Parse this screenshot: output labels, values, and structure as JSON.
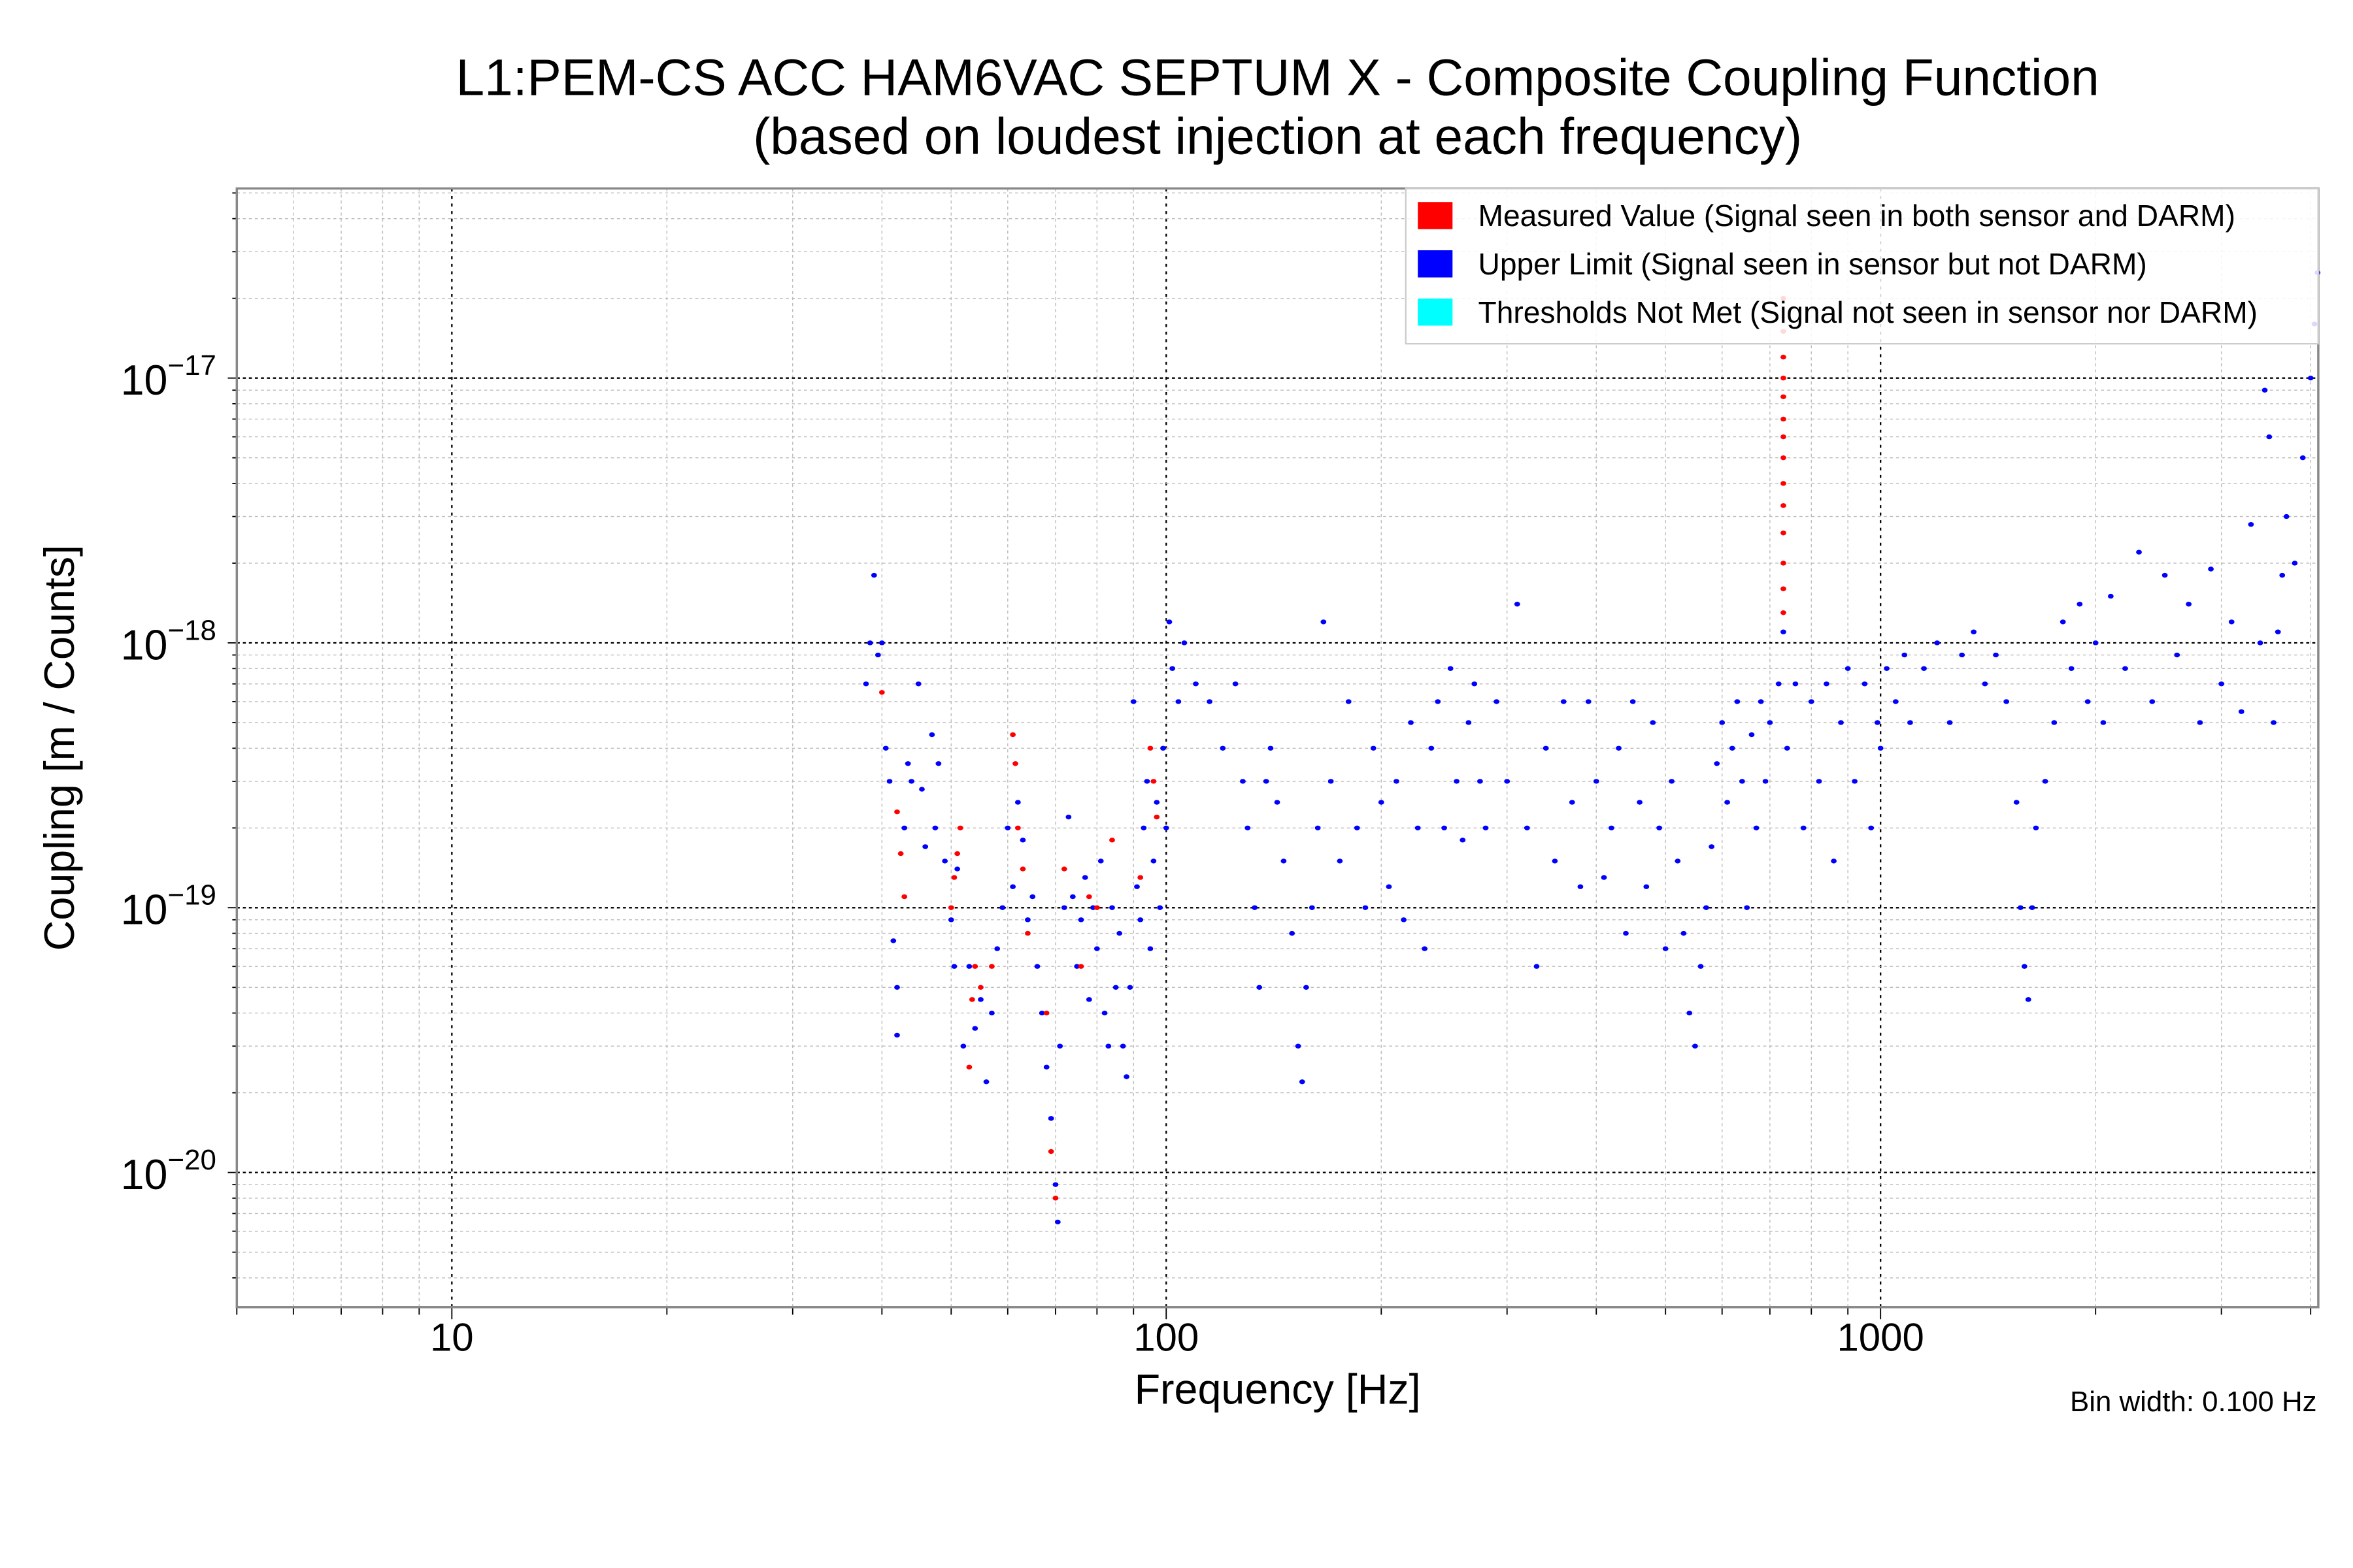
{
  "chart_data": {
    "type": "scatter",
    "title": "L1:PEM-CS ACC HAM6VAC SEPTUM X - Composite Coupling Function",
    "subtitle": "(based on loudest injection at each frequency)",
    "xlabel": "Frequency [Hz]",
    "ylabel": "Coupling [m / Counts]",
    "annotation": "Bin width: 0.100 Hz",
    "xscale": "log",
    "yscale": "log",
    "xlim": [
      5,
      4100
    ],
    "ylim": [
      3.1e-21,
      5.2e-17
    ],
    "x_ticks": [
      {
        "value": 10,
        "label": "10"
      },
      {
        "value": 100,
        "label": "100"
      },
      {
        "value": 1000,
        "label": "1000"
      }
    ],
    "y_ticks": [
      {
        "value": 1e-17,
        "base": "10",
        "exp": "−17"
      },
      {
        "value": 1e-18,
        "base": "10",
        "exp": "−18"
      },
      {
        "value": 1e-19,
        "base": "10",
        "exp": "−19"
      },
      {
        "value": 1e-20,
        "base": "10",
        "exp": "−20"
      }
    ],
    "grid": true,
    "legend_position": "top-right",
    "series": [
      {
        "name": "Measured Value (Signal seen in both sensor and DARM)",
        "color": "#ff0000",
        "points": [
          [
            40,
            6.5e-19
          ],
          [
            42,
            2.3e-19
          ],
          [
            42.5,
            1.6e-19
          ],
          [
            43,
            1.1e-19
          ],
          [
            50,
            1e-19
          ],
          [
            50.5,
            1.3e-19
          ],
          [
            51,
            1.6e-19
          ],
          [
            51.5,
            2e-19
          ],
          [
            53,
            2.5e-20
          ],
          [
            53.5,
            4.5e-20
          ],
          [
            54,
            6e-20
          ],
          [
            55,
            5e-20
          ],
          [
            57,
            6e-20
          ],
          [
            61,
            4.5e-19
          ],
          [
            61.5,
            3.5e-19
          ],
          [
            62,
            2e-19
          ],
          [
            63,
            1.4e-19
          ],
          [
            64,
            8e-20
          ],
          [
            68,
            4e-20
          ],
          [
            69,
            1.2e-20
          ],
          [
            70,
            8e-21
          ],
          [
            72,
            1.4e-19
          ],
          [
            76,
            6e-20
          ],
          [
            78,
            1.1e-19
          ],
          [
            80,
            1e-19
          ],
          [
            84,
            1.8e-19
          ],
          [
            92,
            1.3e-19
          ],
          [
            95,
            4e-19
          ],
          [
            96,
            3e-19
          ],
          [
            97,
            2.2e-19
          ],
          [
            731,
            1.3e-18
          ],
          [
            731,
            1.6e-18
          ],
          [
            731,
            2e-18
          ],
          [
            731,
            2.6e-18
          ],
          [
            731,
            3.3e-18
          ],
          [
            731,
            4e-18
          ],
          [
            731,
            5e-18
          ],
          [
            731,
            6e-18
          ],
          [
            731,
            7e-18
          ],
          [
            731,
            8.5e-18
          ],
          [
            731,
            1e-17
          ],
          [
            731,
            1.2e-17
          ],
          [
            731,
            1.5e-17
          ],
          [
            731,
            2e-17
          ]
        ]
      },
      {
        "name": "Upper Limit (Signal seen in sensor but not DARM)",
        "color": "#0000ff",
        "points": [
          [
            38,
            7e-19
          ],
          [
            38.5,
            1e-18
          ],
          [
            39,
            1.8e-18
          ],
          [
            39.5,
            9e-19
          ],
          [
            40,
            1e-18
          ],
          [
            40.5,
            4e-19
          ],
          [
            41,
            3e-19
          ],
          [
            41.5,
            7.5e-20
          ],
          [
            42,
            5e-20
          ],
          [
            42,
            3.3e-20
          ],
          [
            43,
            2e-19
          ],
          [
            43.5,
            3.5e-19
          ],
          [
            44,
            3e-19
          ],
          [
            45,
            7e-19
          ],
          [
            45.5,
            2.8e-19
          ],
          [
            46,
            1.7e-19
          ],
          [
            47,
            4.5e-19
          ],
          [
            47.5,
            2e-19
          ],
          [
            48,
            3.5e-19
          ],
          [
            49,
            1.5e-19
          ],
          [
            50,
            9e-20
          ],
          [
            50.5,
            6e-20
          ],
          [
            51,
            1.4e-19
          ],
          [
            52,
            3e-20
          ],
          [
            53,
            6e-20
          ],
          [
            54,
            3.5e-20
          ],
          [
            55,
            4.5e-20
          ],
          [
            56,
            2.2e-20
          ],
          [
            57,
            4e-20
          ],
          [
            58,
            7e-20
          ],
          [
            59,
            1e-19
          ],
          [
            60,
            2e-19
          ],
          [
            61,
            1.2e-19
          ],
          [
            62,
            2.5e-19
          ],
          [
            63,
            1.8e-19
          ],
          [
            64,
            9e-20
          ],
          [
            65,
            1.1e-19
          ],
          [
            66,
            6e-20
          ],
          [
            67,
            4e-20
          ],
          [
            68,
            2.5e-20
          ],
          [
            69,
            1.6e-20
          ],
          [
            70,
            9e-21
          ],
          [
            70.5,
            6.5e-21
          ],
          [
            71,
            3e-20
          ],
          [
            72,
            1e-19
          ],
          [
            73,
            2.2e-19
          ],
          [
            74,
            1.1e-19
          ],
          [
            75,
            6e-20
          ],
          [
            76,
            9e-20
          ],
          [
            77,
            1.3e-19
          ],
          [
            78,
            4.5e-20
          ],
          [
            79,
            1e-19
          ],
          [
            80,
            7e-20
          ],
          [
            81,
            1.5e-19
          ],
          [
            82,
            4e-20
          ],
          [
            83,
            3e-20
          ],
          [
            84,
            1e-19
          ],
          [
            85,
            5e-20
          ],
          [
            86,
            8e-20
          ],
          [
            87,
            3e-20
          ],
          [
            88,
            2.3e-20
          ],
          [
            89,
            5e-20
          ],
          [
            90,
            6e-19
          ],
          [
            91,
            1.2e-19
          ],
          [
            92,
            9e-20
          ],
          [
            93,
            2e-19
          ],
          [
            94,
            3e-19
          ],
          [
            95,
            7e-20
          ],
          [
            96,
            1.5e-19
          ],
          [
            97,
            2.5e-19
          ],
          [
            98,
            1e-19
          ],
          [
            99,
            4e-19
          ],
          [
            100,
            2e-19
          ],
          [
            101,
            1.2e-18
          ],
          [
            102,
            8e-19
          ],
          [
            104,
            6e-19
          ],
          [
            106,
            1e-18
          ],
          [
            110,
            7e-19
          ],
          [
            115,
            6e-19
          ],
          [
            120,
            4e-19
          ],
          [
            125,
            7e-19
          ],
          [
            128,
            3e-19
          ],
          [
            130,
            2e-19
          ],
          [
            133,
            1e-19
          ],
          [
            135,
            5e-20
          ],
          [
            138,
            3e-19
          ],
          [
            140,
            4e-19
          ],
          [
            143,
            2.5e-19
          ],
          [
            146,
            1.5e-19
          ],
          [
            150,
            8e-20
          ],
          [
            153,
            3e-20
          ],
          [
            155,
            2.2e-20
          ],
          [
            157,
            5e-20
          ],
          [
            160,
            1e-19
          ],
          [
            163,
            2e-19
          ],
          [
            166,
            1.2e-18
          ],
          [
            170,
            3e-19
          ],
          [
            175,
            1.5e-19
          ],
          [
            180,
            6e-19
          ],
          [
            185,
            2e-19
          ],
          [
            190,
            1e-19
          ],
          [
            195,
            4e-19
          ],
          [
            200,
            2.5e-19
          ],
          [
            205,
            1.2e-19
          ],
          [
            210,
            3e-19
          ],
          [
            215,
            9e-20
          ],
          [
            220,
            5e-19
          ],
          [
            225,
            2e-19
          ],
          [
            230,
            7e-20
          ],
          [
            235,
            4e-19
          ],
          [
            240,
            6e-19
          ],
          [
            245,
            2e-19
          ],
          [
            250,
            8e-19
          ],
          [
            255,
            3e-19
          ],
          [
            260,
            1.8e-19
          ],
          [
            265,
            5e-19
          ],
          [
            270,
            7e-19
          ],
          [
            275,
            3e-19
          ],
          [
            280,
            2e-19
          ],
          [
            290,
            6e-19
          ],
          [
            300,
            3e-19
          ],
          [
            310,
            1.4e-18
          ],
          [
            320,
            2e-19
          ],
          [
            330,
            6e-20
          ],
          [
            340,
            4e-19
          ],
          [
            350,
            1.5e-19
          ],
          [
            360,
            6e-19
          ],
          [
            370,
            2.5e-19
          ],
          [
            380,
            1.2e-19
          ],
          [
            390,
            6e-19
          ],
          [
            400,
            3e-19
          ],
          [
            410,
            1.3e-19
          ],
          [
            420,
            2e-19
          ],
          [
            430,
            4e-19
          ],
          [
            440,
            8e-20
          ],
          [
            450,
            6e-19
          ],
          [
            460,
            2.5e-19
          ],
          [
            470,
            1.2e-19
          ],
          [
            480,
            5e-19
          ],
          [
            490,
            2e-19
          ],
          [
            500,
            7e-20
          ],
          [
            510,
            3e-19
          ],
          [
            520,
            1.5e-19
          ],
          [
            530,
            8e-20
          ],
          [
            540,
            4e-20
          ],
          [
            550,
            3e-20
          ],
          [
            560,
            6e-20
          ],
          [
            570,
            1e-19
          ],
          [
            580,
            1.7e-19
          ],
          [
            590,
            3.5e-19
          ],
          [
            600,
            5e-19
          ],
          [
            610,
            2.5e-19
          ],
          [
            620,
            4e-19
          ],
          [
            630,
            6e-19
          ],
          [
            640,
            3e-19
          ],
          [
            650,
            1e-19
          ],
          [
            660,
            4.5e-19
          ],
          [
            670,
            2e-19
          ],
          [
            680,
            6e-19
          ],
          [
            690,
            3e-19
          ],
          [
            700,
            5e-19
          ],
          [
            720,
            7e-19
          ],
          [
            731,
            1.1e-18
          ],
          [
            740,
            4e-19
          ],
          [
            760,
            7e-19
          ],
          [
            780,
            2e-19
          ],
          [
            800,
            6e-19
          ],
          [
            820,
            3e-19
          ],
          [
            840,
            7e-19
          ],
          [
            860,
            1.5e-19
          ],
          [
            880,
            5e-19
          ],
          [
            900,
            8e-19
          ],
          [
            920,
            3e-19
          ],
          [
            950,
            7e-19
          ],
          [
            970,
            2e-19
          ],
          [
            990,
            5e-19
          ],
          [
            1000,
            4e-19
          ],
          [
            1020,
            8e-19
          ],
          [
            1050,
            6e-19
          ],
          [
            1080,
            9e-19
          ],
          [
            1100,
            5e-19
          ],
          [
            1150,
            8e-19
          ],
          [
            1200,
            1e-18
          ],
          [
            1250,
            5e-19
          ],
          [
            1300,
            9e-19
          ],
          [
            1350,
            1.1e-18
          ],
          [
            1400,
            7e-19
          ],
          [
            1450,
            9e-19
          ],
          [
            1500,
            6e-19
          ],
          [
            1550,
            2.5e-19
          ],
          [
            1570,
            1e-19
          ],
          [
            1590,
            6e-20
          ],
          [
            1610,
            4.5e-20
          ],
          [
            1630,
            1e-19
          ],
          [
            1650,
            2e-19
          ],
          [
            1700,
            3e-19
          ],
          [
            1750,
            5e-19
          ],
          [
            1800,
            1.2e-18
          ],
          [
            1850,
            8e-19
          ],
          [
            1900,
            1.4e-18
          ],
          [
            1950,
            6e-19
          ],
          [
            2000,
            1e-18
          ],
          [
            2050,
            5e-19
          ],
          [
            2100,
            1.5e-18
          ],
          [
            2200,
            8e-19
          ],
          [
            2300,
            2.2e-18
          ],
          [
            2400,
            6e-19
          ],
          [
            2500,
            1.8e-18
          ],
          [
            2600,
            9e-19
          ],
          [
            2700,
            1.4e-18
          ],
          [
            2800,
            5e-19
          ],
          [
            2900,
            1.9e-18
          ],
          [
            3000,
            7e-19
          ],
          [
            3100,
            1.2e-18
          ],
          [
            3200,
            5.5e-19
          ],
          [
            3300,
            2.8e-18
          ],
          [
            3400,
            1e-18
          ],
          [
            3450,
            9e-18
          ],
          [
            3500,
            6e-18
          ],
          [
            3550,
            5e-19
          ],
          [
            3600,
            1.1e-18
          ],
          [
            3650,
            1.8e-18
          ],
          [
            3700,
            3e-18
          ],
          [
            3800,
            2e-18
          ],
          [
            3900,
            5e-18
          ],
          [
            4000,
            1e-17
          ],
          [
            4050,
            1.6e-17
          ],
          [
            4090,
            2.5e-17
          ]
        ]
      },
      {
        "name": "Thresholds Not Met (Signal not seen in sensor nor DARM)",
        "color": "#00ffff",
        "points": []
      }
    ]
  }
}
